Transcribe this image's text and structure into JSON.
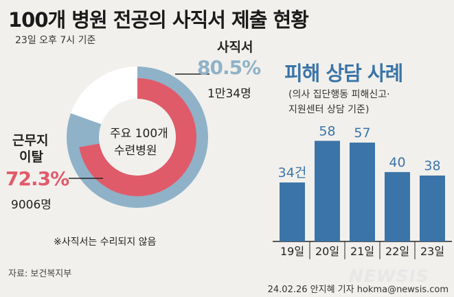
{
  "title": "100개 병원 전공의 사직서 제출 현황",
  "subtitle": "23일 오후 7시 기준",
  "donut": {
    "center_line1": "주요 100개",
    "center_line2": "수련병원",
    "resign": {
      "label": "사직서",
      "percent": "80.5%",
      "count": "1만34명",
      "value": 80.5,
      "color": "#8fb2c8"
    },
    "absent": {
      "label_line1": "근무지",
      "label_line2": "이탈",
      "percent": "72.3%",
      "count": "9006명",
      "value": 72.3,
      "color": "#e05b6a"
    },
    "note": "※사직서는 수리되지 않음"
  },
  "source": "자료: 보건복지부",
  "credit": "24.02.26 안지혜 기자 hokma@newsis.com",
  "watermark": "NEWSIS",
  "chart_data": [
    {
      "type": "pie",
      "center_text": [
        "주요 100개",
        "수련병원"
      ],
      "series": [
        {
          "name": "사직서",
          "value": 80.5,
          "unit": "%",
          "count": "1만34명"
        },
        {
          "name": "근무지 이탈",
          "value": 72.3,
          "unit": "%",
          "count": "9006명"
        }
      ]
    },
    {
      "type": "bar",
      "title": "피해 상담 사례",
      "subtitle": [
        "(의사 집단행동 피해신고·",
        "지원센터 상담 기준)"
      ],
      "categories": [
        "19일",
        "20일",
        "21일",
        "22일",
        "23일"
      ],
      "values": [
        34,
        58,
        57,
        40,
        38
      ],
      "value_labels": [
        "34건",
        "58",
        "57",
        "40",
        "38"
      ],
      "color": "#3a74a8",
      "ylim": [
        0,
        70
      ]
    }
  ]
}
